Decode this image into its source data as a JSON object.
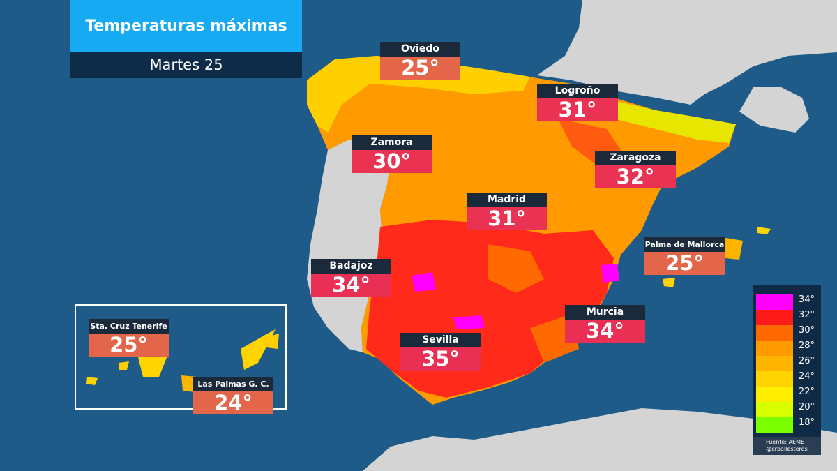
{
  "title": "Temperaturas máximas",
  "subtitle": "Martes 25",
  "cities": [
    {
      "name": "Oviedo",
      "temp": "25°",
      "cls": "c25"
    },
    {
      "name": "Logroño",
      "temp": "31°",
      "cls": "c31"
    },
    {
      "name": "Zamora",
      "temp": "30°",
      "cls": "c30"
    },
    {
      "name": "Zaragoza",
      "temp": "32°",
      "cls": "c32"
    },
    {
      "name": "Madrid",
      "temp": "31°",
      "cls": "c31"
    },
    {
      "name": "Palma de Mallorca",
      "temp": "25°",
      "cls": "c25"
    },
    {
      "name": "Badajoz",
      "temp": "34°",
      "cls": "c34"
    },
    {
      "name": "Murcia",
      "temp": "34°",
      "cls": "c34"
    },
    {
      "name": "Sevilla",
      "temp": "35°",
      "cls": "c35"
    },
    {
      "name": "Sta. Cruz Tenerife",
      "temp": "25°",
      "cls": "c25"
    },
    {
      "name": "Las Palmas G. C.",
      "temp": "24°",
      "cls": "c24"
    }
  ],
  "legend": {
    "steps": [
      {
        "label": "34°",
        "color": "#ff00ff"
      },
      {
        "label": "32°",
        "color": "#ff1a1a"
      },
      {
        "label": "30°",
        "color": "#ff6a00"
      },
      {
        "label": "28°",
        "color": "#ff9a00"
      },
      {
        "label": "26°",
        "color": "#ffb400"
      },
      {
        "label": "24°",
        "color": "#ffd400"
      },
      {
        "label": "22°",
        "color": "#ffee00"
      },
      {
        "label": "20°",
        "color": "#d8ff00"
      },
      {
        "label": "18°",
        "color": "#7cff00"
      }
    ],
    "source_line1": "Fuente: AEMET",
    "source_line2": "@crballesteros"
  }
}
